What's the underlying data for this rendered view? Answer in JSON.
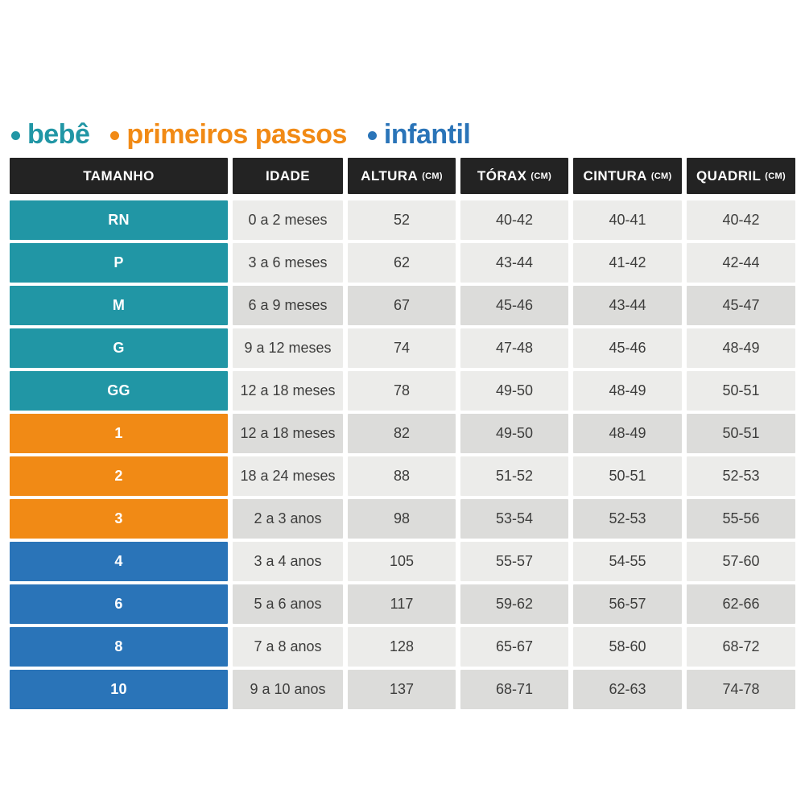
{
  "legend": {
    "items": [
      {
        "id": "bebe",
        "label": "bebê",
        "color": "#2196A5"
      },
      {
        "id": "primeiros-passos",
        "label": "primeiros passos",
        "color": "#F18A15"
      },
      {
        "id": "infantil",
        "label": "infantil",
        "color": "#2A74B8"
      }
    ]
  },
  "groups": {
    "bebe": {
      "label": "bebê",
      "color": "#2196A5"
    },
    "primeiros_passos": {
      "label": "primeiros passos",
      "color": "#F18A15"
    },
    "infantil": {
      "label": "infantil",
      "color": "#2A74B8"
    }
  },
  "shades": {
    "light": "#ECECEA",
    "dark": "#DCDCDA"
  },
  "header_bg": "#232323",
  "chart_data": {
    "type": "table",
    "columns": [
      {
        "key": "size",
        "label": "TAMANHO",
        "unit": ""
      },
      {
        "key": "age",
        "label": "IDADE",
        "unit": ""
      },
      {
        "key": "height",
        "label": "ALTURA",
        "unit": "(CM)"
      },
      {
        "key": "chest",
        "label": "TÓRAX",
        "unit": "(CM)"
      },
      {
        "key": "waist",
        "label": "CINTURA",
        "unit": "(CM)"
      },
      {
        "key": "hip",
        "label": "QUADRIL",
        "unit": "(CM)"
      }
    ],
    "rows": [
      {
        "size": "RN",
        "age": "0 a 2 meses",
        "height": "52",
        "chest": "40-42",
        "waist": "40-41",
        "hip": "40-42",
        "group": "bebe",
        "shade": "light"
      },
      {
        "size": "P",
        "age": "3 a 6 meses",
        "height": "62",
        "chest": "43-44",
        "waist": "41-42",
        "hip": "42-44",
        "group": "bebe",
        "shade": "light"
      },
      {
        "size": "M",
        "age": "6 a 9 meses",
        "height": "67",
        "chest": "45-46",
        "waist": "43-44",
        "hip": "45-47",
        "group": "bebe",
        "shade": "dark"
      },
      {
        "size": "G",
        "age": "9 a 12 meses",
        "height": "74",
        "chest": "47-48",
        "waist": "45-46",
        "hip": "48-49",
        "group": "bebe",
        "shade": "light"
      },
      {
        "size": "GG",
        "age": "12 a 18 meses",
        "height": "78",
        "chest": "49-50",
        "waist": "48-49",
        "hip": "50-51",
        "group": "bebe",
        "shade": "light"
      },
      {
        "size": "1",
        "age": "12 a 18 meses",
        "height": "82",
        "chest": "49-50",
        "waist": "48-49",
        "hip": "50-51",
        "group": "primeiros_passos",
        "shade": "dark"
      },
      {
        "size": "2",
        "age": "18 a 24 meses",
        "height": "88",
        "chest": "51-52",
        "waist": "50-51",
        "hip": "52-53",
        "group": "primeiros_passos",
        "shade": "light"
      },
      {
        "size": "3",
        "age": "2 a 3 anos",
        "height": "98",
        "chest": "53-54",
        "waist": "52-53",
        "hip": "55-56",
        "group": "primeiros_passos",
        "shade": "dark"
      },
      {
        "size": "4",
        "age": "3 a 4 anos",
        "height": "105",
        "chest": "55-57",
        "waist": "54-55",
        "hip": "57-60",
        "group": "infantil",
        "shade": "light"
      },
      {
        "size": "6",
        "age": "5 a 6 anos",
        "height": "117",
        "chest": "59-62",
        "waist": "56-57",
        "hip": "62-66",
        "group": "infantil",
        "shade": "dark"
      },
      {
        "size": "8",
        "age": "7 a 8 anos",
        "height": "128",
        "chest": "65-67",
        "waist": "58-60",
        "hip": "68-72",
        "group": "infantil",
        "shade": "light"
      },
      {
        "size": "10",
        "age": "9 a 10 anos",
        "height": "137",
        "chest": "68-71",
        "waist": "62-63",
        "hip": "74-78",
        "group": "infantil",
        "shade": "dark"
      }
    ]
  }
}
